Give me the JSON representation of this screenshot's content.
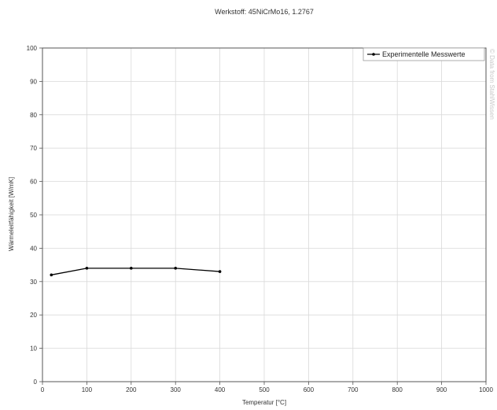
{
  "chart_data": {
    "type": "line",
    "title": "Werkstoff: 45NiCrMo16, 1.2767",
    "xlabel": "Temperatur [°C]",
    "ylabel": "Wärmeleitfähigkeit [W/mK]",
    "xlim": [
      0,
      1000
    ],
    "ylim": [
      0,
      100
    ],
    "xticks": [
      0,
      100,
      200,
      300,
      400,
      500,
      600,
      700,
      800,
      900,
      1000
    ],
    "yticks": [
      0,
      10,
      20,
      30,
      40,
      50,
      60,
      70,
      80,
      90,
      100
    ],
    "grid": true,
    "legend_position": "top-right",
    "watermark": "© Data from StahlWissen",
    "series": [
      {
        "name": "Experimentelle Messwerte",
        "color": "#000000",
        "x": [
          20,
          100,
          200,
          300,
          400
        ],
        "y": [
          32,
          34,
          34,
          34,
          33
        ]
      }
    ]
  }
}
